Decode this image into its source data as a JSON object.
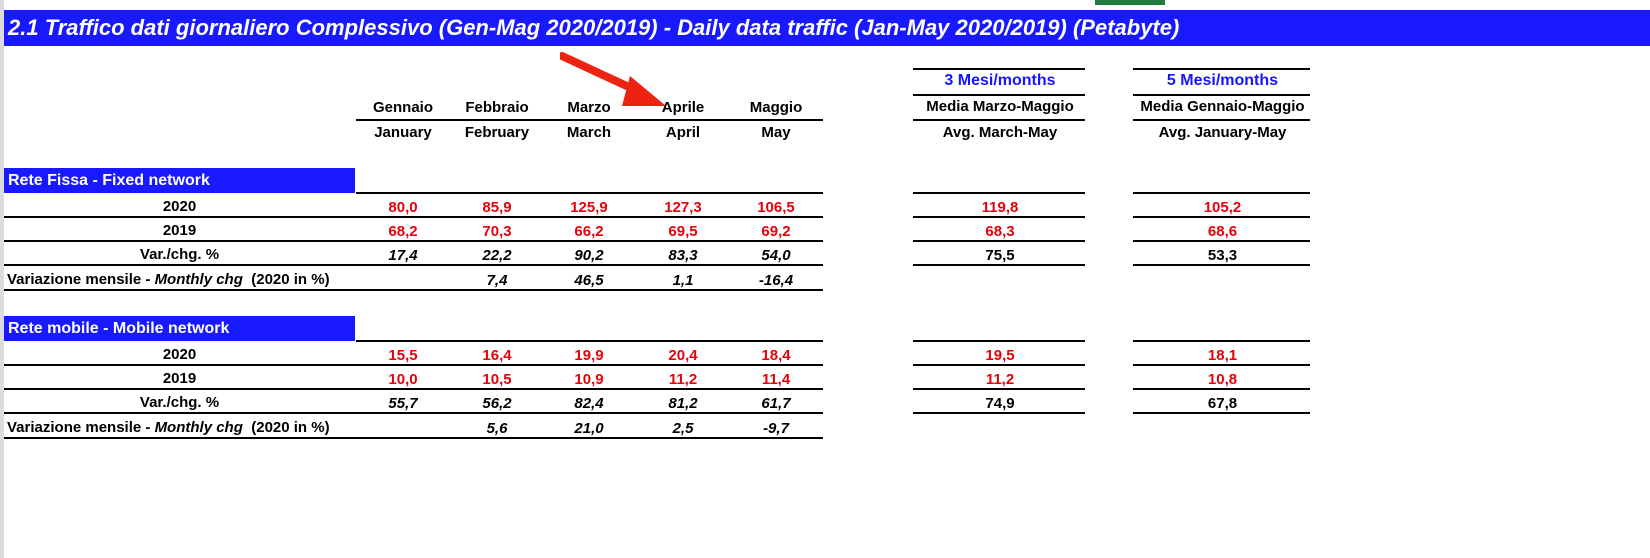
{
  "title": "2.1 Traffico dati giornaliero Complessivo (Gen-Mag 2020/2019) - Daily data traffic (Jan-May 2020/2019) (Petabyte)",
  "months_it": [
    "Gennaio",
    "Febbraio",
    "Marzo",
    "Aprile",
    "Maggio"
  ],
  "months_en": [
    "January",
    "February",
    "March",
    "April",
    "May"
  ],
  "avg3": {
    "heading": "3 Mesi/months",
    "line1": "Media Marzo-Maggio",
    "line2": "Avg. March-May"
  },
  "avg5": {
    "heading": "5 Mesi/months",
    "line1": "Media Gennaio-Maggio",
    "line2": "Avg. January-May"
  },
  "fixed": {
    "title": "Rete Fissa - Fixed network",
    "rows": {
      "y2020": {
        "label": "2020",
        "values": [
          "80,0",
          "85,9",
          "125,9",
          "127,3",
          "106,5"
        ],
        "avg3": "119,8",
        "avg5": "105,2"
      },
      "y2019": {
        "label": "2019",
        "values": [
          "68,2",
          "70,3",
          "66,2",
          "69,5",
          "69,2"
        ],
        "avg3": "68,3",
        "avg5": "68,6"
      },
      "chg": {
        "label": "Var./chg. %",
        "values": [
          "17,4",
          "22,2",
          "90,2",
          "83,3",
          "54,0"
        ],
        "avg3": "75,5",
        "avg5": "53,3"
      },
      "monthly": {
        "label_a": "Variazione mensile - ",
        "label_b": "Monthly chg",
        "label_c": "  (2020 in %)",
        "values": [
          "",
          "7,4",
          "46,5",
          "1,1",
          "-16,4"
        ]
      }
    }
  },
  "mobile": {
    "title": "Rete mobile - Mobile network",
    "rows": {
      "y2020": {
        "label": "2020",
        "values": [
          "15,5",
          "16,4",
          "19,9",
          "20,4",
          "18,4"
        ],
        "avg3": "19,5",
        "avg5": "18,1"
      },
      "y2019": {
        "label": "2019",
        "values": [
          "10,0",
          "10,5",
          "10,9",
          "11,2",
          "11,4"
        ],
        "avg3": "11,2",
        "avg5": "10,8"
      },
      "chg": {
        "label": "Var./chg. %",
        "values": [
          "55,7",
          "56,2",
          "82,4",
          "81,2",
          "61,7"
        ],
        "avg3": "74,9",
        "avg5": "67,8"
      },
      "monthly": {
        "label_a": "Variazione mensile - ",
        "label_b": "Monthly chg",
        "label_c": "  (2020 in %)",
        "values": [
          "",
          "5,6",
          "21,0",
          "2,5",
          "-9,7"
        ]
      }
    }
  },
  "colors": {
    "title_bg": "#1919ff",
    "value_red": "#e8000b",
    "arrow": "#ee2211",
    "avg_heading": "#1515ff"
  }
}
